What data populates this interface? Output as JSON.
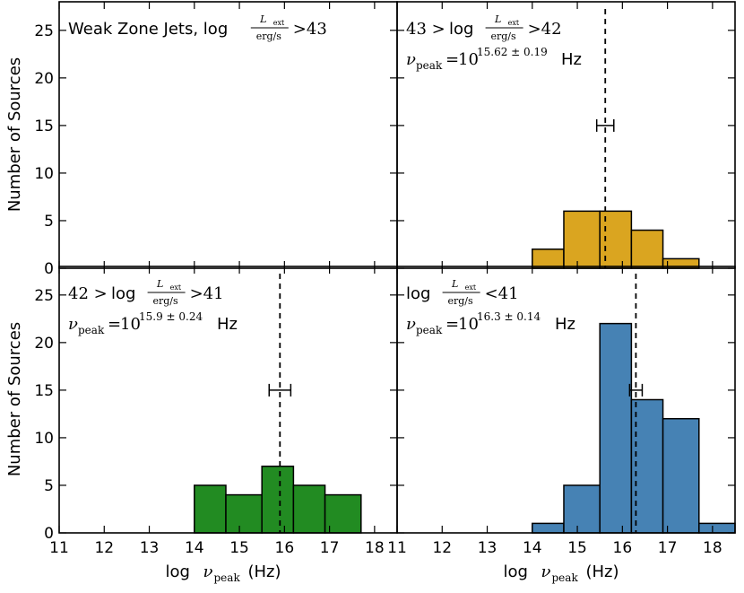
{
  "chart_data": {
    "type": "bar",
    "x_axis": {
      "label": "log ν_peak (Hz)",
      "ticks": [
        11,
        12,
        13,
        14,
        15,
        16,
        17,
        18
      ],
      "range": [
        11,
        18.5
      ]
    },
    "y_axis": {
      "label": "Number of Sources",
      "ticks": [
        0,
        5,
        10,
        15,
        20,
        25
      ],
      "range": [
        0,
        28
      ]
    },
    "panels": [
      {
        "id": "top-left",
        "title": "Weak Zone Jets, log",
        "condition": ">43",
        "color": "#ffffff",
        "bins": [],
        "peak": null,
        "peak_text": ""
      },
      {
        "id": "top-right",
        "title_prefix": "43 >",
        "title": "log",
        "condition": ">42",
        "color": "#DAA520",
        "bins": [
          {
            "x0": 14.0,
            "x1": 14.7,
            "count": 2
          },
          {
            "x0": 14.7,
            "x1": 15.5,
            "count": 6
          },
          {
            "x0": 15.5,
            "x1": 16.2,
            "count": 6
          },
          {
            "x0": 16.2,
            "x1": 16.9,
            "count": 4
          },
          {
            "x0": 16.9,
            "x1": 17.7,
            "count": 1
          }
        ],
        "peak": {
          "value": 15.62,
          "err": 0.19,
          "y": 15
        },
        "peak_text": "15.62 ± 0.19"
      },
      {
        "id": "bottom-left",
        "title_prefix": "42 >",
        "title": "log",
        "condition": ">41",
        "color": "#228B22",
        "bins": [
          {
            "x0": 14.0,
            "x1": 14.7,
            "count": 5
          },
          {
            "x0": 14.7,
            "x1": 15.5,
            "count": 4
          },
          {
            "x0": 15.5,
            "x1": 16.2,
            "count": 7
          },
          {
            "x0": 16.2,
            "x1": 16.9,
            "count": 5
          },
          {
            "x0": 16.9,
            "x1": 17.7,
            "count": 4
          }
        ],
        "peak": {
          "value": 15.9,
          "err": 0.24,
          "y": 15
        },
        "peak_text": "15.9 ± 0.24"
      },
      {
        "id": "bottom-right",
        "title": "log",
        "condition": "<41",
        "color": "#4682B4",
        "bins": [
          {
            "x0": 14.0,
            "x1": 14.7,
            "count": 1
          },
          {
            "x0": 14.7,
            "x1": 15.5,
            "count": 5
          },
          {
            "x0": 15.5,
            "x1": 16.2,
            "count": 22
          },
          {
            "x0": 16.2,
            "x1": 16.9,
            "count": 14
          },
          {
            "x0": 16.9,
            "x1": 17.7,
            "count": 12
          },
          {
            "x0": 17.7,
            "x1": 18.5,
            "count": 1
          }
        ],
        "peak": {
          "value": 16.3,
          "err": 0.14,
          "y": 15
        },
        "peak_text": "16.3 ± 0.14"
      }
    ],
    "l_ext_fraction": {
      "numerator": "L",
      "numerator_sub": "ext",
      "denominator": "erg/s"
    },
    "nu_peak_label": {
      "symbol": "ν",
      "sub": "peak",
      "base": "10",
      "unit": "Hz"
    }
  }
}
